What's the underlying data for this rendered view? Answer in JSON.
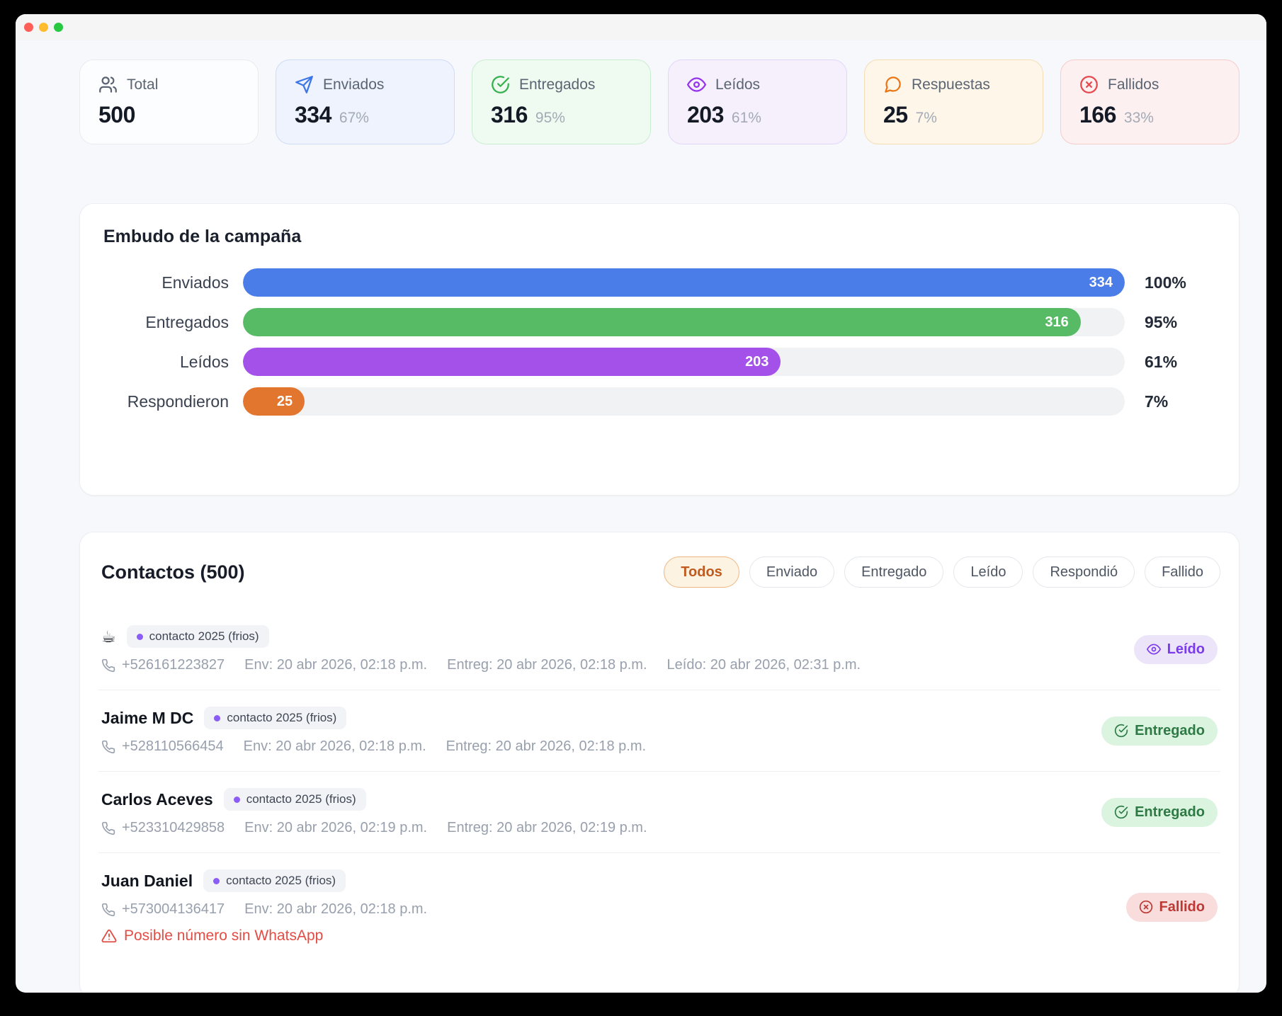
{
  "colors": {
    "blue": "#4a7de8",
    "green": "#57bb66",
    "purple": "#a351e8",
    "orange": "#e2762f",
    "red": "#e5484d",
    "active_filter": "#c05a1e"
  },
  "stats": {
    "cards": [
      {
        "icon": "users-icon",
        "label": "Total",
        "value": "500",
        "percent": ""
      },
      {
        "icon": "send-icon",
        "label": "Enviados",
        "value": "334",
        "percent": "67%"
      },
      {
        "icon": "check-circle-icon",
        "label": "Entregados",
        "value": "316",
        "percent": "95%"
      },
      {
        "icon": "eye-icon",
        "label": "Leídos",
        "value": "203",
        "percent": "61%"
      },
      {
        "icon": "chat-bubble-icon",
        "label": "Respuestas",
        "value": "25",
        "percent": "7%"
      },
      {
        "icon": "x-circle-icon",
        "label": "Fallidos",
        "value": "166",
        "percent": "33%"
      }
    ]
  },
  "funnel": {
    "title": "Embudo de la campaña",
    "rows": [
      {
        "label": "Enviados",
        "value": "334",
        "percent": 100,
        "percent_label": "100%",
        "color": "#4a7de8"
      },
      {
        "label": "Entregados",
        "value": "316",
        "percent": 95,
        "percent_label": "95%",
        "color": "#57bb66"
      },
      {
        "label": "Leídos",
        "value": "203",
        "percent": 61,
        "percent_label": "61%",
        "color": "#a351e8"
      },
      {
        "label": "Respondieron",
        "value": "25",
        "percent": 7,
        "percent_label": "7%",
        "color": "#e2762f"
      }
    ]
  },
  "contacts": {
    "title": "Contactos (500)",
    "filters": [
      {
        "label": "Todos",
        "active": true
      },
      {
        "label": "Enviado",
        "active": false
      },
      {
        "label": "Entregado",
        "active": false
      },
      {
        "label": "Leído",
        "active": false
      },
      {
        "label": "Respondió",
        "active": false
      },
      {
        "label": "Fallido",
        "active": false
      }
    ],
    "rows": [
      {
        "name": "☕",
        "tag": "contacto 2025 (frios)",
        "phone": "+526161223827",
        "ts_env": "Env: 20 abr 2026, 02:18 p.m.",
        "ts_entreg": "Entreg: 20 abr 2026, 02:18 p.m.",
        "ts_leido": "Leído: 20 abr 2026, 02:31 p.m.",
        "status": "Leído"
      },
      {
        "name": "Jaime M DC",
        "tag": "contacto 2025 (frios)",
        "phone": "+528110566454",
        "ts_env": "Env: 20 abr 2026, 02:18 p.m.",
        "ts_entreg": "Entreg: 20 abr 2026, 02:18 p.m.",
        "status": "Entregado"
      },
      {
        "name": "Carlos Aceves",
        "tag": "contacto 2025 (frios)",
        "phone": "+523310429858",
        "ts_env": "Env: 20 abr 2026, 02:19 p.m.",
        "ts_entreg": "Entreg: 20 abr 2026, 02:19 p.m.",
        "status": "Entregado"
      },
      {
        "name": "Juan Daniel",
        "tag": "contacto 2025 (frios)",
        "phone": "+573004136417",
        "ts_env": "Env: 20 abr 2026, 02:18 p.m.",
        "warning": "Posible número sin WhatsApp",
        "status": "Fallido"
      }
    ]
  }
}
